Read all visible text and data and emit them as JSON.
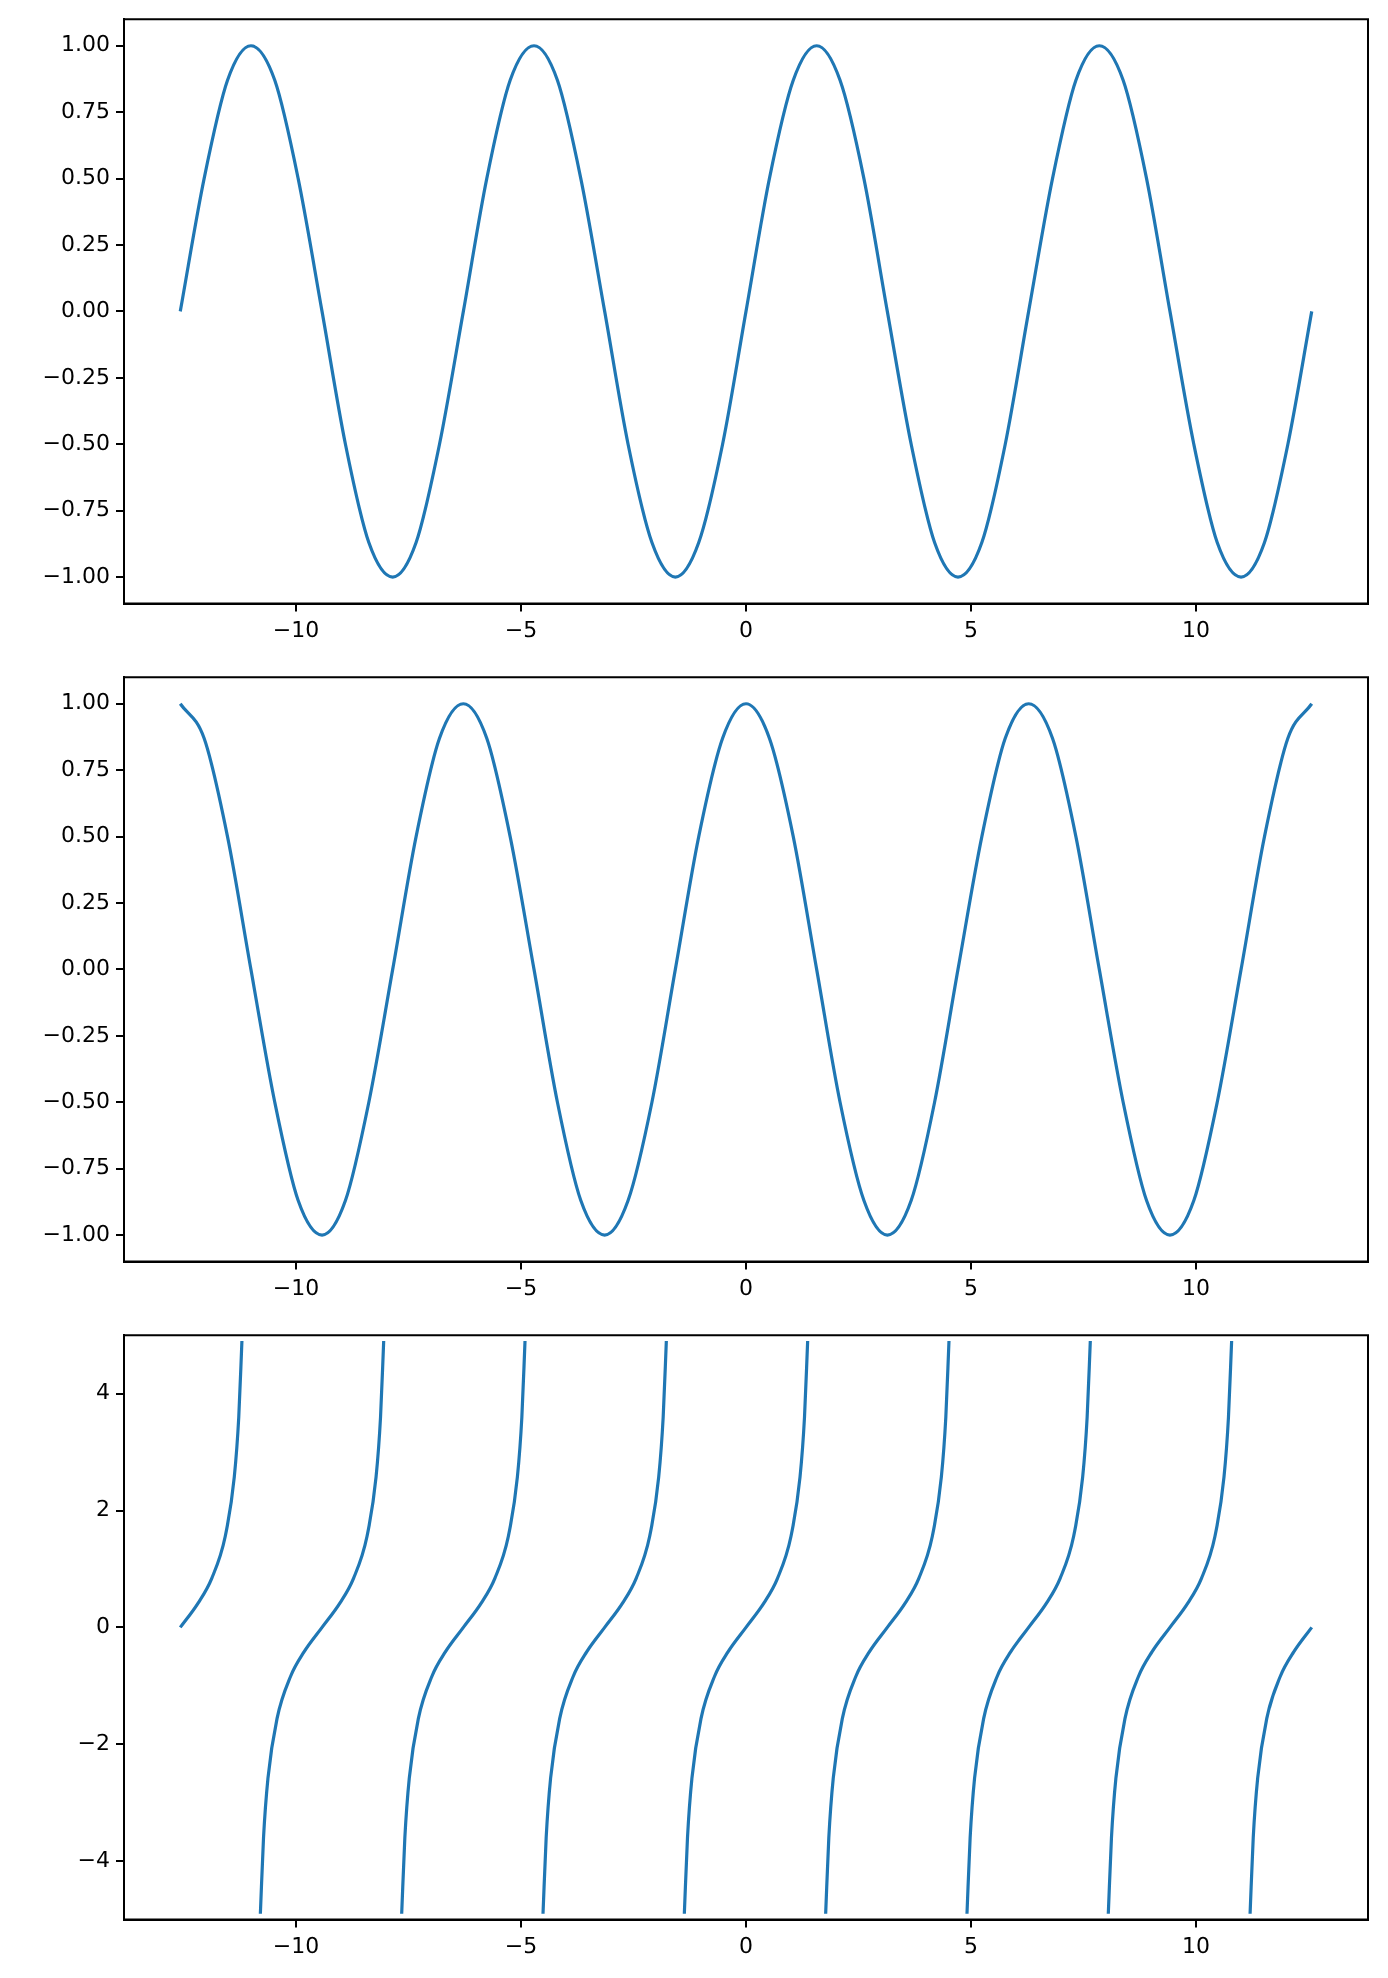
{
  "chart_data": [
    {
      "type": "line",
      "color": "#1f77b4",
      "x": [
        -12.57,
        -12.04,
        -11.52,
        -11.0,
        -10.47,
        -9.95,
        -9.42,
        -8.9,
        -8.38,
        -7.85,
        -7.33,
        -6.81,
        -6.28,
        -5.76,
        -5.24,
        -4.71,
        -4.19,
        -3.67,
        -3.14,
        -2.62,
        -2.09,
        -1.57,
        -1.05,
        -0.52,
        0,
        0.52,
        1.05,
        1.57,
        2.09,
        2.62,
        3.14,
        3.67,
        4.19,
        4.71,
        5.24,
        5.76,
        6.28,
        6.81,
        7.33,
        7.85,
        8.38,
        8.9,
        9.42,
        9.95,
        10.47,
        11.0,
        11.52,
        12.04,
        12.57
      ],
      "values": [
        0,
        0.5,
        0.87,
        1,
        0.87,
        0.5,
        0,
        -0.5,
        -0.87,
        -1,
        -0.87,
        -0.5,
        0,
        0.5,
        0.87,
        1,
        0.87,
        0.5,
        0,
        -0.5,
        -0.87,
        -1,
        -0.87,
        -0.5,
        0,
        0.5,
        0.87,
        1,
        0.87,
        0.5,
        0,
        -0.5,
        -0.87,
        -1,
        -0.87,
        -0.5,
        0,
        0.5,
        0.87,
        1,
        0.87,
        0.5,
        0,
        -0.5,
        -0.87,
        -1,
        -0.87,
        -0.5,
        0
      ],
      "xlim": [
        -13.82,
        13.82
      ],
      "xticks": [
        -10,
        -5,
        0,
        5,
        10
      ],
      "ylim": [
        -1.1,
        1.1
      ],
      "yticks": [
        {
          "value": -1,
          "label": "−1.00"
        },
        {
          "value": -0.75,
          "label": "−0.75"
        },
        {
          "value": -0.5,
          "label": "−0.50"
        },
        {
          "value": -0.25,
          "label": "−0.25"
        },
        {
          "value": 0,
          "label": "0.00"
        },
        {
          "value": 0.25,
          "label": "0.25"
        },
        {
          "value": 0.5,
          "label": "0.50"
        },
        {
          "value": 0.75,
          "label": "0.75"
        },
        {
          "value": 1,
          "label": "1.00"
        }
      ]
    },
    {
      "type": "line",
      "color": "#1f77b4",
      "x": [
        -12.57,
        -12.04,
        -11.52,
        -11.0,
        -10.47,
        -9.95,
        -9.42,
        -8.9,
        -8.38,
        -7.85,
        -7.33,
        -6.81,
        -6.28,
        -5.76,
        -5.24,
        -4.71,
        -4.19,
        -3.67,
        -3.14,
        -2.62,
        -2.09,
        -1.57,
        -1.05,
        -0.52,
        0,
        0.52,
        1.05,
        1.57,
        2.09,
        2.62,
        3.14,
        3.67,
        4.19,
        4.71,
        5.24,
        5.76,
        6.28,
        6.81,
        7.33,
        7.85,
        8.38,
        8.9,
        9.42,
        9.95,
        10.47,
        11.0,
        11.52,
        12.04,
        12.57
      ],
      "values": [
        1,
        0.87,
        0.5,
        0,
        -0.5,
        -0.87,
        -1,
        -0.87,
        -0.5,
        0,
        0.5,
        0.87,
        1,
        0.87,
        0.5,
        0,
        -0.5,
        -0.87,
        -1,
        -0.87,
        -0.5,
        0,
        0.5,
        0.87,
        1,
        0.87,
        0.5,
        0,
        -0.5,
        -0.87,
        -1,
        -0.87,
        -0.5,
        0,
        0.5,
        0.87,
        1,
        0.87,
        0.5,
        0,
        -0.5,
        -0.87,
        -1,
        -0.87,
        -0.5,
        0,
        0.5,
        0.87,
        1
      ],
      "xlim": [
        -13.82,
        13.82
      ],
      "xticks": [
        -10,
        -5,
        0,
        5,
        10
      ],
      "ylim": [
        -1.1,
        1.1
      ],
      "yticks": [
        {
          "value": -1,
          "label": "−1.00"
        },
        {
          "value": -0.75,
          "label": "−0.75"
        },
        {
          "value": -0.5,
          "label": "−0.50"
        },
        {
          "value": -0.25,
          "label": "−0.25"
        },
        {
          "value": 0,
          "label": "0.00"
        },
        {
          "value": 0.25,
          "label": "0.25"
        },
        {
          "value": 0.5,
          "label": "0.50"
        },
        {
          "value": 0.75,
          "label": "0.75"
        },
        {
          "value": 1,
          "label": "1.00"
        }
      ]
    },
    {
      "type": "line",
      "color": "#1f77b4",
      "x": [
        -12.57,
        -12.17,
        -11.87,
        -11.57,
        -11.37,
        -11.27,
        -11.2,
        -11.0,
        -10.79,
        -10.72,
        -10.62,
        -10.42,
        -10.12,
        -9.82,
        -9.42,
        -9.02,
        -8.72,
        -8.42,
        -8.22,
        -8.12,
        -8.05,
        -7.85,
        -7.65,
        -7.58,
        -7.48,
        -7.28,
        -6.98,
        -6.68,
        -6.28,
        -5.88,
        -5.58,
        -5.28,
        -5.08,
        -4.98,
        -4.91,
        -4.71,
        -4.51,
        -4.44,
        -4.34,
        -4.14,
        -3.84,
        -3.54,
        -3.14,
        -2.74,
        -2.44,
        -2.14,
        -1.94,
        -1.84,
        -1.77,
        -1.57,
        -1.37,
        -1.3,
        -1.2,
        -1.0,
        -0.7,
        -0.4,
        0,
        0.4,
        0.7,
        1.0,
        1.2,
        1.3,
        1.37,
        1.57,
        1.77,
        1.84,
        1.94,
        2.14,
        2.44,
        2.74,
        3.14,
        3.54,
        3.84,
        4.14,
        4.34,
        4.44,
        4.51,
        4.71,
        4.91,
        4.98,
        5.08,
        5.28,
        5.58,
        5.88,
        6.28,
        6.68,
        6.98,
        7.28,
        7.48,
        7.58,
        7.65,
        7.85,
        8.05,
        8.12,
        8.22,
        8.42,
        8.72,
        9.02,
        9.42,
        9.82,
        10.12,
        10.42,
        10.62,
        10.72,
        10.79,
        11.0,
        11.2,
        11.27,
        11.37,
        11.57,
        11.87,
        12.17,
        12.57
      ],
      "values": [
        0,
        0.42,
        0.84,
        1.56,
        2.57,
        3.6,
        4.9,
        null,
        -4.9,
        -3.6,
        -2.57,
        -1.56,
        -0.84,
        -0.42,
        0,
        0.42,
        0.84,
        1.56,
        2.57,
        3.6,
        4.9,
        null,
        -4.9,
        -3.6,
        -2.57,
        -1.56,
        -0.84,
        -0.42,
        0,
        0.42,
        0.84,
        1.56,
        2.57,
        3.6,
        4.9,
        null,
        -4.9,
        -3.6,
        -2.57,
        -1.56,
        -0.84,
        -0.42,
        0,
        0.42,
        0.84,
        1.56,
        2.57,
        3.6,
        4.9,
        null,
        -4.9,
        -3.6,
        -2.57,
        -1.56,
        -0.84,
        -0.42,
        0,
        0.42,
        0.84,
        1.56,
        2.57,
        3.6,
        4.9,
        null,
        -4.9,
        -3.6,
        -2.57,
        -1.56,
        -0.84,
        -0.42,
        0,
        0.42,
        0.84,
        1.56,
        2.57,
        3.6,
        4.9,
        null,
        -4.9,
        -3.6,
        -2.57,
        -1.56,
        -0.84,
        -0.42,
        0,
        0.42,
        0.84,
        1.56,
        2.57,
        3.6,
        4.9,
        null,
        -4.9,
        -3.6,
        -2.57,
        -1.56,
        -0.84,
        -0.42,
        0,
        0.42,
        0.84,
        1.56,
        2.57,
        3.6,
        4.9,
        null,
        -4.9,
        -3.6,
        -2.57,
        -1.56,
        -0.84,
        -0.42,
        0
      ],
      "xlim": [
        -13.82,
        13.82
      ],
      "xticks": [
        -10,
        -5,
        0,
        5,
        10
      ],
      "ylim": [
        -5,
        5
      ],
      "yticks": [
        {
          "value": -4,
          "label": "−4"
        },
        {
          "value": -2,
          "label": "−2"
        },
        0,
        2,
        4
      ]
    }
  ]
}
